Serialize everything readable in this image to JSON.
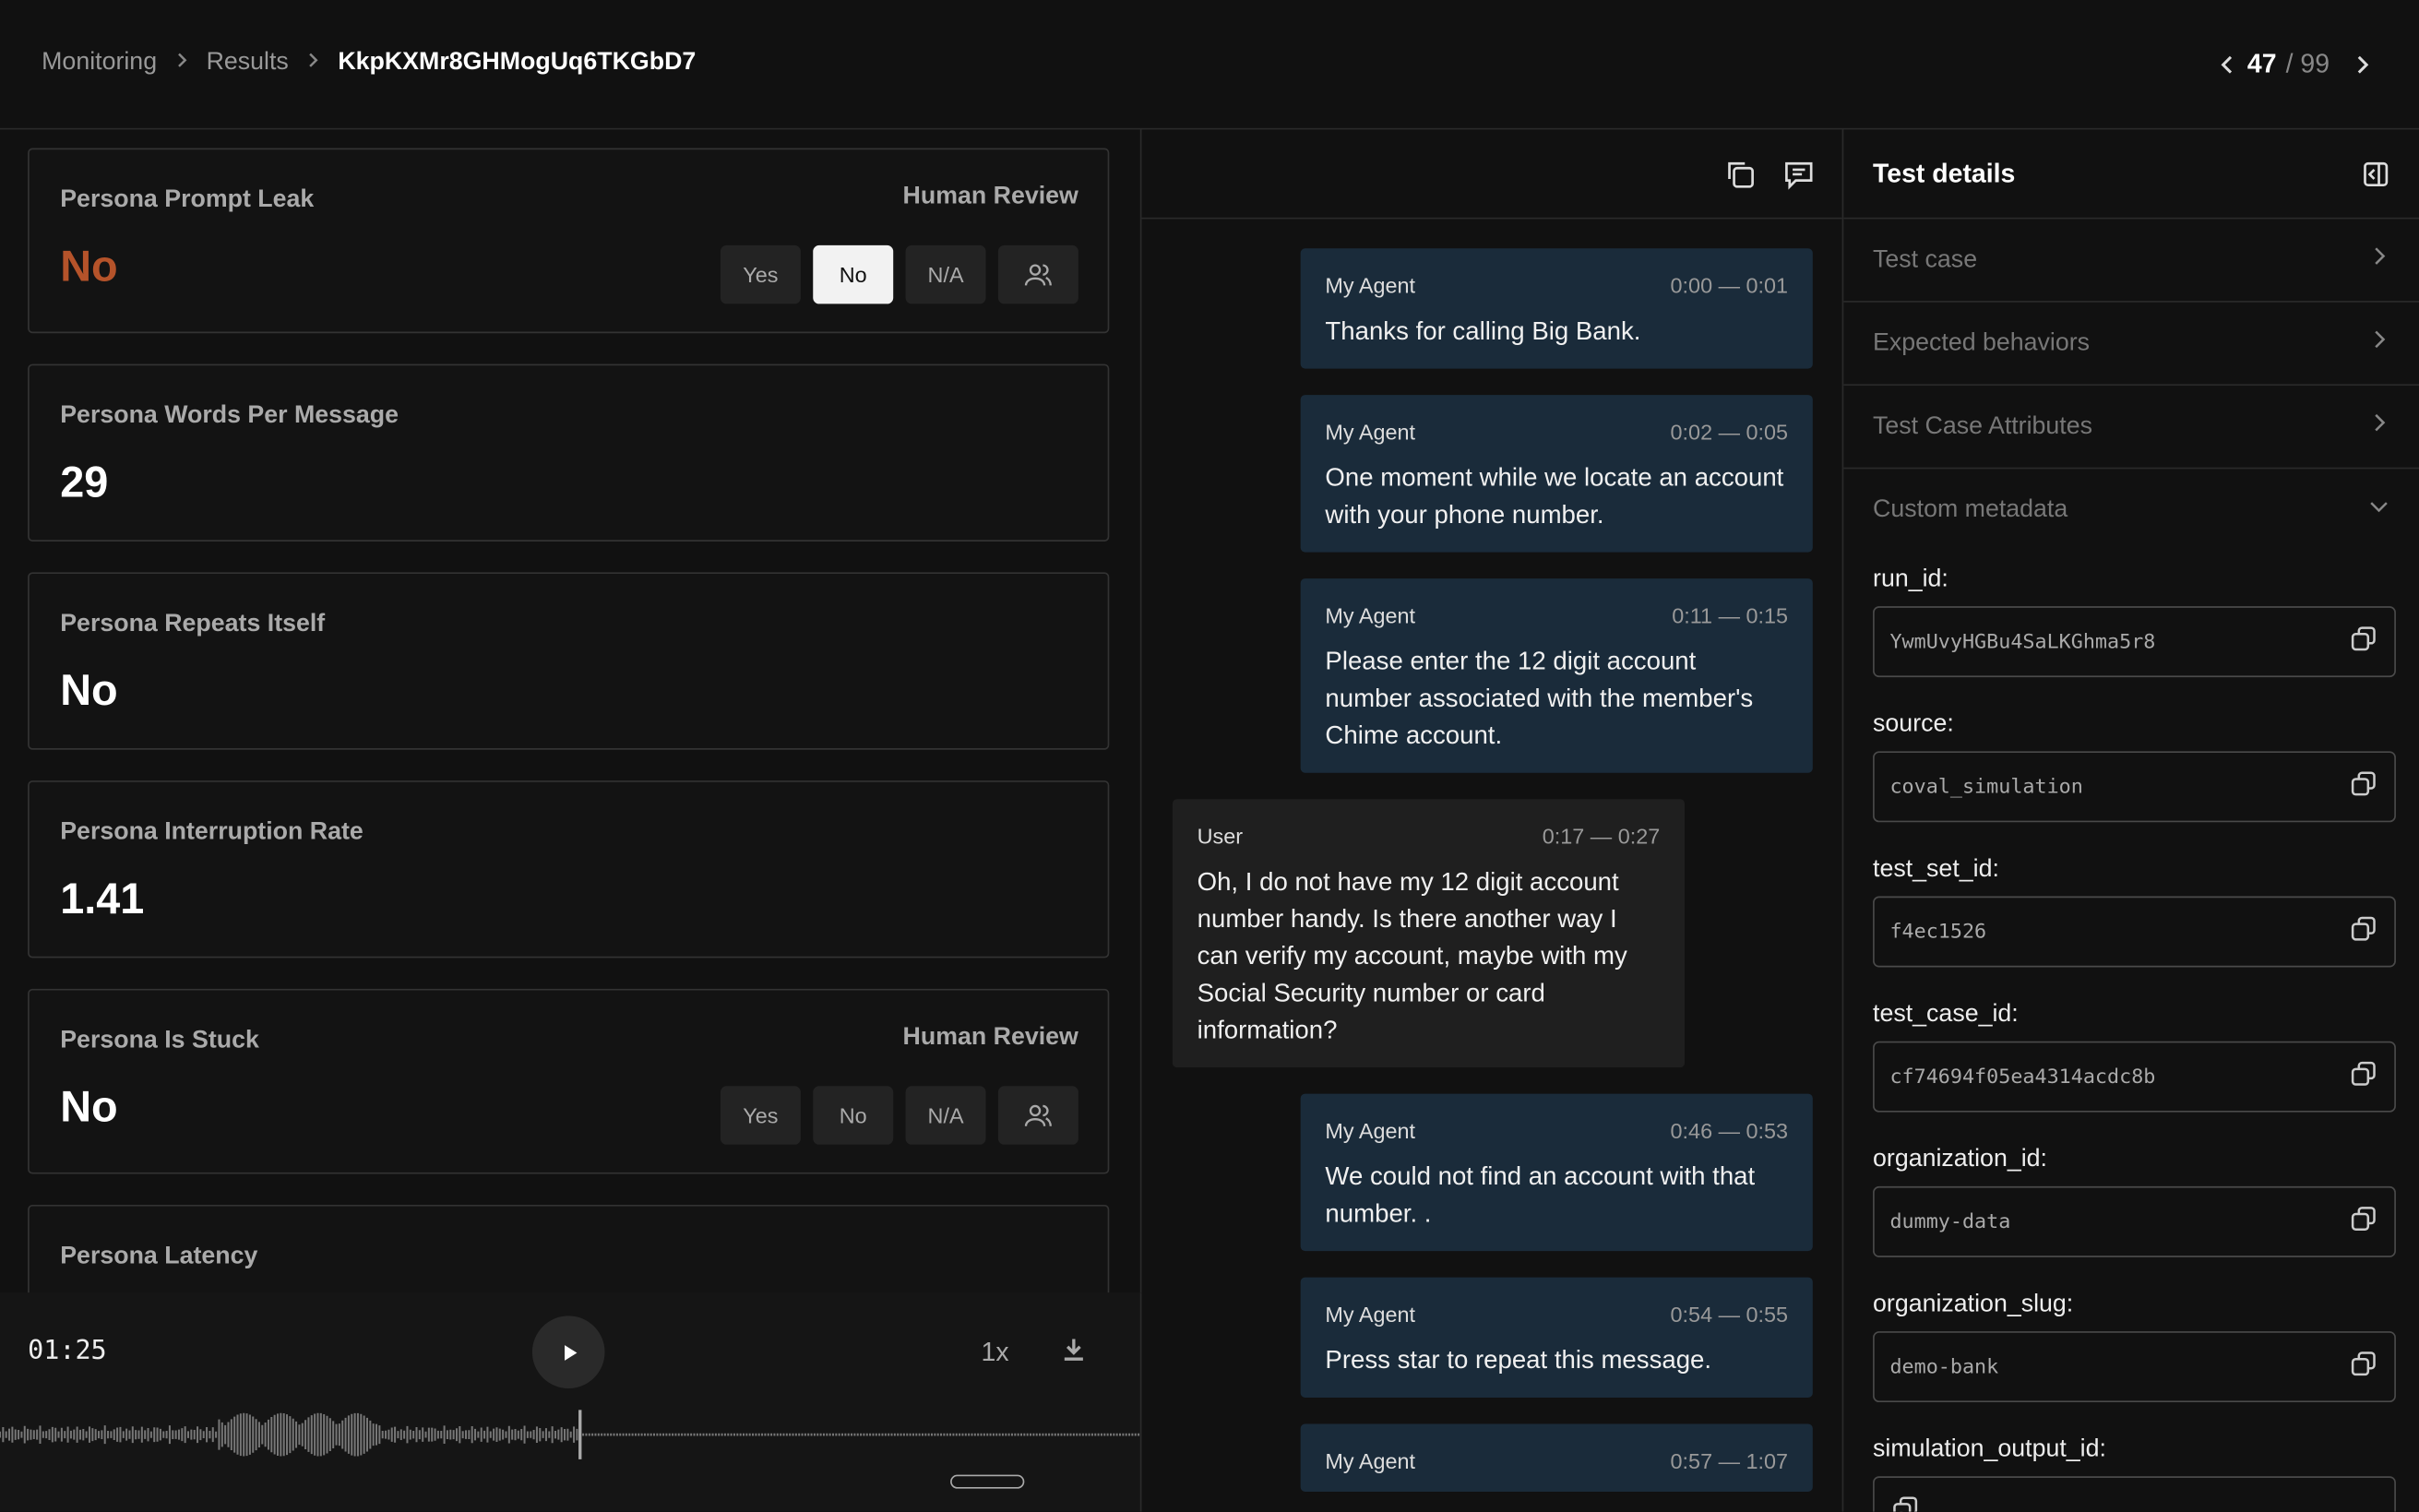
{
  "header": {
    "breadcrumbs": [
      "Monitoring",
      "Results",
      "KkpKXMr8GHMogUq6TKGbD7"
    ],
    "pager": {
      "current": "47",
      "total": "/ 99"
    }
  },
  "metrics": [
    {
      "name": "Persona Prompt Leak",
      "value": "No",
      "review": {
        "label": "Human Review",
        "options": [
          "Yes",
          "No",
          "N/A"
        ],
        "selected": "No"
      }
    },
    {
      "name": "Persona Words Per Message",
      "value": "29"
    },
    {
      "name": "Persona Repeats Itself",
      "value": "No"
    },
    {
      "name": "Persona Interruption Rate",
      "value": "1.41"
    },
    {
      "name": "Persona Is Stuck",
      "value": "No",
      "review": {
        "label": "Human Review",
        "options": [
          "Yes",
          "No",
          "N/A"
        ]
      }
    },
    {
      "name": "Persona Latency"
    }
  ],
  "player": {
    "time": "01:25",
    "speed": "1x"
  },
  "transcript": [
    {
      "speaker": "My Agent",
      "time": "0:00 — 0:01",
      "text": "Thanks for calling Big Bank."
    },
    {
      "speaker": "My Agent",
      "time": "0:02 — 0:05",
      "text": "One moment while we locate an account with your phone number."
    },
    {
      "speaker": "My Agent",
      "time": "0:11 — 0:15",
      "text": "Please enter the 12 digit account number associated with the member's Chime account."
    },
    {
      "speaker": "User",
      "time": "0:17 — 0:27",
      "text": "Oh, I do not have my 12 digit account number handy. Is there another way I can verify my account, maybe with my Social Security number or card information?"
    },
    {
      "speaker": "My Agent",
      "time": "0:46 — 0:53",
      "text": "We could not find an account with that number. ."
    },
    {
      "speaker": "My Agent",
      "time": "0:54 — 0:55",
      "text": "Press star to repeat this message."
    },
    {
      "speaker": "My Agent",
      "time": "0:57 — 1:07"
    }
  ],
  "details": {
    "title": "Test details",
    "sections": [
      "Test case",
      "Expected behaviors",
      "Test Case Attributes",
      "Custom metadata"
    ],
    "metadata": [
      {
        "key": "run_id:",
        "value": "YwmUvyHGBu4SaLKGhma5r8"
      },
      {
        "key": "source:",
        "value": "coval_simulation"
      },
      {
        "key": "test_set_id:",
        "value": "f4ec1526"
      },
      {
        "key": "test_case_id:",
        "value": "cf74694f05ea4314acdc8b"
      },
      {
        "key": "organization_id:",
        "value": "dummy-data"
      },
      {
        "key": "organization_slug:",
        "value": "demo-bank"
      },
      {
        "key": "simulation_output_id:"
      }
    ]
  }
}
